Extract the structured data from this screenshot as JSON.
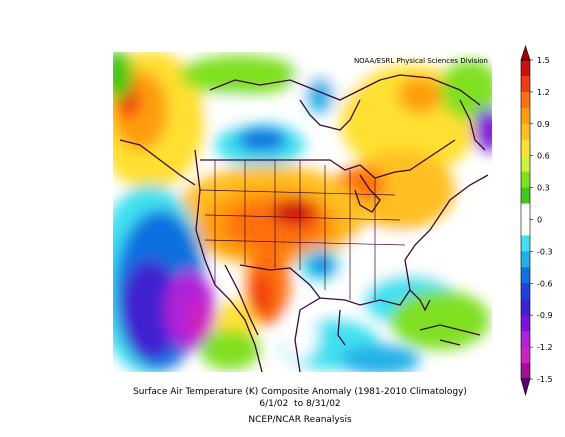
{
  "header": {
    "credit": "NOAA/ESRL Physical Sciences Division"
  },
  "colorbar": {
    "ticks": [
      1.5,
      1.2,
      0.9,
      0.6,
      0.3,
      0,
      -0.3,
      -0.6,
      -0.9,
      -1.2,
      -1.5
    ],
    "above_color": "#a00000",
    "below_color": "#5a0070",
    "colors": [
      "#d01010",
      "#f03c10",
      "#ff7010",
      "#ff9d10",
      "#ffbf20",
      "#ffe030",
      "#d0f040",
      "#80e020",
      "#40c818",
      "#ffffff",
      "#ffffff",
      "#40e0f0",
      "#20b0e8",
      "#1070e0",
      "#2040e0",
      "#4020d0",
      "#8010e0",
      "#b020d8",
      "#d020c0",
      "#a01090"
    ]
  },
  "caption": {
    "title": "Surface Air Temperature (K) Composite Anomaly (1981-2010 Climatology)",
    "dates": "6/1/02  to 8/31/02",
    "source": "NCEP/NCAR Reanalysis"
  }
}
